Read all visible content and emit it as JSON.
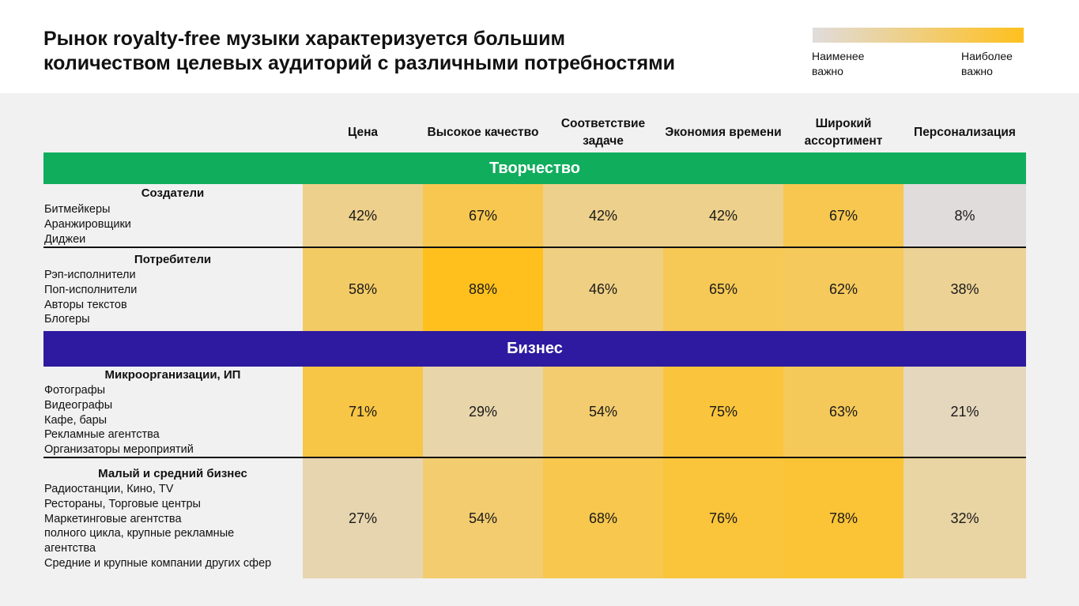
{
  "title": {
    "line1": "Рынок royalty-free музыки характеризуется большим",
    "line2": "количеством целевых аудиторий с различными потребностями"
  },
  "legend": {
    "low_label": "Наименее важно",
    "high_label": "Наиболее важно",
    "low_color": "#e0dcdc",
    "high_color": "#ffc01e"
  },
  "colors": {
    "creative_band": "#10ad5d",
    "business_band": "#2e1aa0"
  },
  "columns": [
    "Цена",
    "Высокое качество",
    "Соответствие задаче",
    "Экономия времени",
    "Широкий ассортимент",
    "Персонализация"
  ],
  "sections": [
    {
      "name": "Творчество",
      "rows": [
        {
          "title": "Создатели",
          "items": [
            "Битмейкеры",
            "Аранжировщики",
            "Диджеи"
          ],
          "labels": [
            "42%",
            "67%",
            "42%",
            "42%",
            "67%",
            "8%"
          ]
        },
        {
          "title": "Потребители",
          "items": [
            "Рэп-исполнители",
            "Поп-исполнители",
            "Авторы текстов",
            "Блогеры"
          ],
          "labels": [
            "58%",
            "88%",
            "46%",
            "65%",
            "62%",
            "38%"
          ]
        }
      ]
    },
    {
      "name": "Бизнес",
      "rows": [
        {
          "title": "Микроорганизации, ИП",
          "items": [
            "Фотографы",
            "Видеографы",
            "Кафе, бары",
            "Рекламные агентства",
            "Организаторы мероприятий"
          ],
          "labels": [
            "71%",
            "29%",
            "54%",
            "75%",
            "63%",
            "21%"
          ]
        },
        {
          "title": "Малый и средний бизнес",
          "items": [
            "Радиостанции, Кино, TV",
            "Рестораны, Торговые центры",
            "Маркетинговые агентства",
            "полного цикла, крупные рекламные",
            "агентства",
            "Средние и крупные компании других сфер"
          ],
          "labels": [
            "27%",
            "54%",
            "68%",
            "76%",
            "78%",
            "32%"
          ]
        }
      ]
    }
  ],
  "chart_data": {
    "type": "heatmap",
    "title": "Рынок royalty-free музыки характеризуется большим количеством целевых аудиторий с различными потребностями",
    "x": [
      "Цена",
      "Высокое качество",
      "Соответствие задаче",
      "Экономия времени",
      "Широкий ассортимент",
      "Персонализация"
    ],
    "y": [
      "Создатели",
      "Потребители",
      "Микроорганизации, ИП",
      "Малый и средний бизнес"
    ],
    "groups": [
      {
        "name": "Творчество",
        "rows": [
          "Создатели",
          "Потребители"
        ]
      },
      {
        "name": "Бизнес",
        "rows": [
          "Микроорганизации, ИП",
          "Малый и средний бизнес"
        ]
      }
    ],
    "values": [
      [
        42,
        67,
        42,
        42,
        67,
        8
      ],
      [
        58,
        88,
        46,
        65,
        62,
        38
      ],
      [
        71,
        29,
        54,
        75,
        63,
        21
      ],
      [
        27,
        54,
        68,
        76,
        78,
        32
      ]
    ],
    "unit": "%",
    "colorscale": [
      "#e0dcdc",
      "#ffc01e"
    ]
  }
}
